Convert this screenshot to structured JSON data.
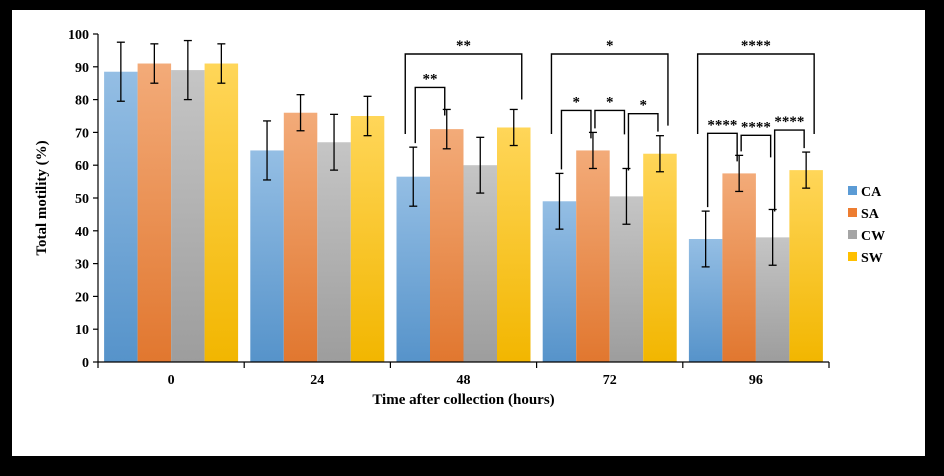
{
  "chart_data": {
    "type": "bar",
    "title": "",
    "xlabel": "Time after collection (hours)",
    "ylabel": "Total motility (%)",
    "ylim": [
      0,
      100
    ],
    "yticks": [
      0,
      10,
      20,
      30,
      40,
      50,
      60,
      70,
      80,
      90,
      100
    ],
    "categories": [
      "0",
      "24",
      "48",
      "72",
      "96"
    ],
    "series": [
      {
        "name": "CA",
        "color": "#5b9bd5",
        "values": [
          88.5,
          64.5,
          56.5,
          49,
          37.5
        ],
        "errors": [
          9,
          9,
          9,
          8.5,
          8.5
        ]
      },
      {
        "name": "SA",
        "color": "#ed7d31",
        "values": [
          91,
          76,
          71,
          64.5,
          57.5
        ],
        "errors": [
          6,
          5.5,
          6,
          5.5,
          5.5
        ]
      },
      {
        "name": "CW",
        "color": "#a5a5a5",
        "values": [
          89,
          67,
          60,
          50.5,
          38
        ],
        "errors": [
          9,
          8.5,
          8.5,
          8.5,
          8.5
        ]
      },
      {
        "name": "SW",
        "color": "#ffc000",
        "values": [
          91,
          75,
          71.5,
          63.5,
          58.5
        ],
        "errors": [
          6,
          6,
          5.5,
          5.5,
          5.5
        ]
      }
    ],
    "legend": {
      "position": "right"
    },
    "grid": false,
    "significance": [
      {
        "category": "48",
        "from": "CA",
        "to": "SW",
        "label": "**"
      },
      {
        "category": "48",
        "from": "CA",
        "to": "SA",
        "label": "**"
      },
      {
        "category": "72",
        "from": "CA",
        "to": "SW",
        "label": "*"
      },
      {
        "category": "72",
        "from": "CA",
        "to": "SA",
        "label": "*"
      },
      {
        "category": "72",
        "from": "SA",
        "to": "CW",
        "label": "*"
      },
      {
        "category": "72",
        "from": "CW",
        "to": "SW",
        "label": "*"
      },
      {
        "category": "96",
        "from": "CA",
        "to": "SW",
        "label": "****"
      },
      {
        "category": "96",
        "from": "CA",
        "to": "SA",
        "label": "****"
      },
      {
        "category": "96",
        "from": "SA",
        "to": "CW",
        "label": "****"
      },
      {
        "category": "96",
        "from": "CW",
        "to": "SW",
        "label": "****"
      }
    ]
  }
}
